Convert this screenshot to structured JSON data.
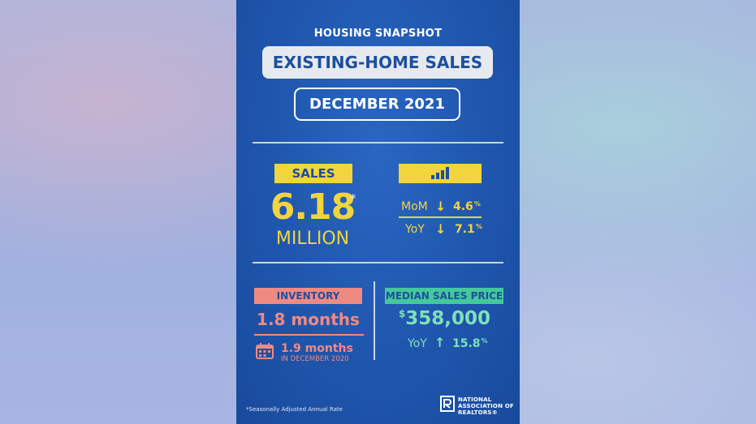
{
  "header": {
    "kicker": "HOUSING SNAPSHOT",
    "title": "EXISTING-HOME SALES",
    "date": "DECEMBER 2021"
  },
  "sales": {
    "tag": "SALES",
    "value": "6.18",
    "asterisk": "*",
    "unit": "MILLION",
    "chart_icon": "bar-chart-icon",
    "mom_label": "MoM",
    "mom_direction": "down",
    "mom_value": "4.6",
    "mom_pct": "%",
    "yoy_label": "YoY",
    "yoy_direction": "down",
    "yoy_value": "7.1",
    "yoy_pct": "%"
  },
  "inventory": {
    "tag": "INVENTORY",
    "value": "1.8 months",
    "prior_value": "1.9 months",
    "prior_label": "IN DECEMBER 2020",
    "icon": "calendar-icon"
  },
  "median_price": {
    "tag": "MEDIAN SALES PRICE",
    "currency": "$",
    "value": "358,000",
    "yoy_label": "YoY",
    "yoy_direction": "up",
    "yoy_value": "15.8",
    "yoy_pct": "%"
  },
  "footer": {
    "footnote": "*Seasonally Adjusted Annual Rate",
    "logo_lines": [
      "NATIONAL",
      "ASSOCIATION OF",
      "REALTORS®"
    ]
  },
  "colors": {
    "card_blue": "#1f56ad",
    "yellow": "#f2d53c",
    "coral": "#ef8a83",
    "green": "#43c99b",
    "title_blue": "#1d4f9e"
  }
}
